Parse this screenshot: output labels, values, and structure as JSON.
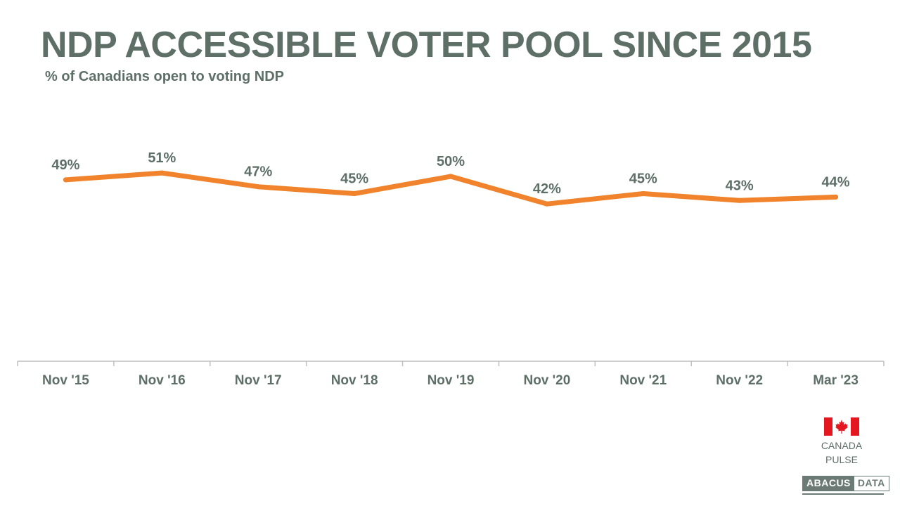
{
  "title": "NDP ACCESSIBLE VOTER POOL SINCE 2015",
  "subtitle": "% of Canadians open to voting NDP",
  "chart_data": {
    "type": "line",
    "title": "NDP ACCESSIBLE VOTER POOL SINCE 2015",
    "subtitle": "% of Canadians open to voting NDP",
    "categories": [
      "Nov '15",
      "Nov '16",
      "Nov '17",
      "Nov '18",
      "Nov '19",
      "Nov '20",
      "Nov '21",
      "Nov '22",
      "Mar '23"
    ],
    "series": [
      {
        "values": [
          49,
          51,
          47,
          45,
          50,
          42,
          45,
          43,
          44
        ],
        "labels": [
          "49%",
          "51%",
          "47%",
          "45%",
          "50%",
          "42%",
          "45%",
          "43%",
          "44%"
        ],
        "color": "#f0832b"
      }
    ],
    "ylim": [
      0,
      100
    ],
    "grid": false,
    "legend": "none",
    "xlabel": "",
    "ylabel": ""
  },
  "branding": {
    "pulse_line1": "CANADA",
    "pulse_line2": "PULSE",
    "logo_part1": "ABACUS",
    "logo_part2": "DATA",
    "flag_icon": "canada-flag-icon",
    "flag_color": "#e4161f",
    "text_color": "#5e6f68"
  }
}
